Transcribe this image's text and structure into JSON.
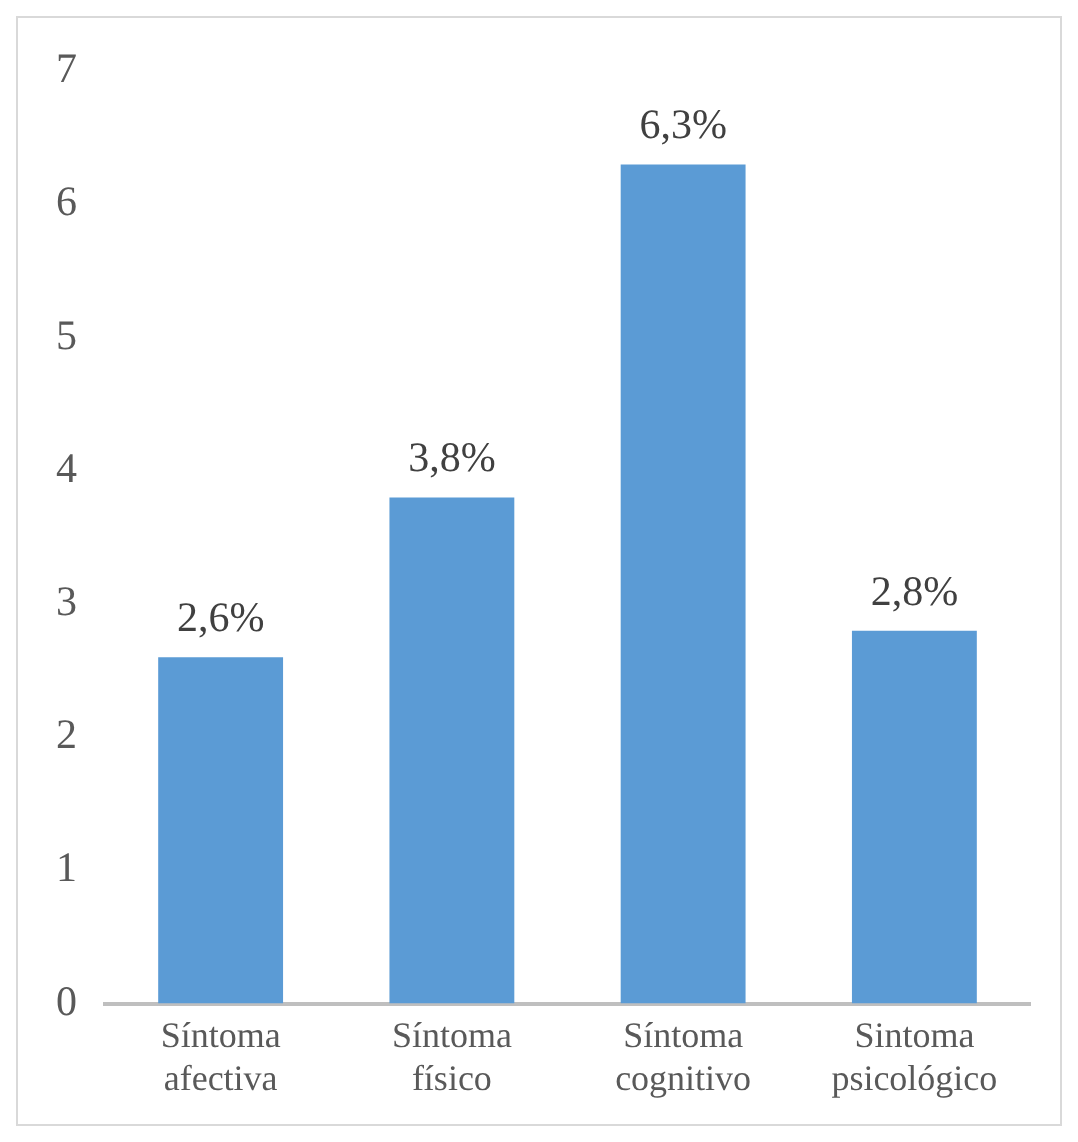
{
  "chart_data": {
    "type": "bar",
    "categories": [
      "Síntoma afectiva",
      "Síntoma físico",
      "Síntoma cognitivo",
      "Sintoma psicológico"
    ],
    "values": [
      2.6,
      3.8,
      6.3,
      2.8
    ],
    "value_labels": [
      "2,6%",
      "3,8%",
      "6,3%",
      "2,8%"
    ],
    "color": "#5b9bd5",
    "ylim": [
      0,
      7
    ],
    "yticks": [
      0,
      1,
      2,
      3,
      4,
      5,
      6,
      7
    ],
    "grid": false,
    "legend": false
  }
}
